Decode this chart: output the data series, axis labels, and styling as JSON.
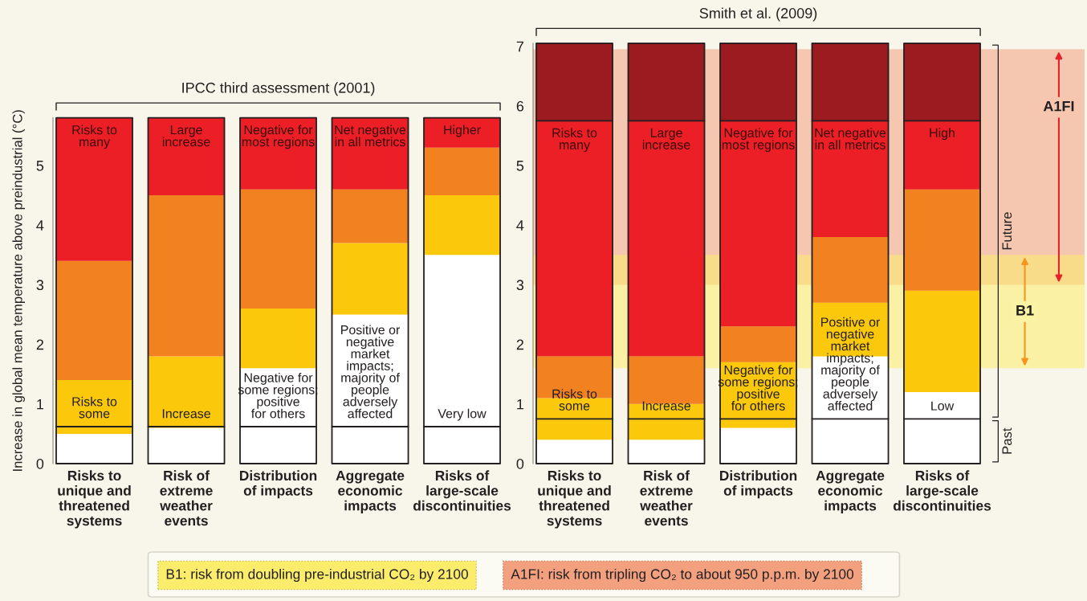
{
  "chart_data": [
    {
      "type": "bar",
      "stacked": true,
      "title": "IPCC third assessment (2001)",
      "ylabel": "Increase in global mean temperature above preindustrial (°C)",
      "categories": [
        "Risks to\nunique and\nthreatened\nsystems",
        "Risk of\nextreme\nweather\nevents",
        "Distribution\nof impacts",
        "Aggregate\neconomic\nimpacts",
        "Risks of\nlarge-scale\ndiscontinuities"
      ],
      "series": [
        {
          "color": "#ffffff",
          "values": [
            0.5,
            0.6,
            1.6,
            2.5,
            3.5
          ]
        },
        {
          "color": "#fcc80c",
          "values": [
            0.9,
            1.2,
            1.0,
            1.2,
            1.0
          ]
        },
        {
          "color": "#f2821f",
          "values": [
            2.0,
            2.7,
            2.0,
            0.9,
            0.8
          ]
        },
        {
          "color": "#ec1f26",
          "values": [
            2.4,
            1.3,
            1.2,
            1.2,
            0.5
          ]
        }
      ],
      "ylim": [
        0,
        5.8
      ],
      "yticks": [
        0,
        1,
        2,
        3,
        4,
        5
      ],
      "ref_lines": [
        {
          "axis": "y",
          "value": 0.62
        }
      ],
      "annotations": [
        "Risks to\nmany",
        "Risks to\nsome",
        "Large\nincrease",
        "Increase",
        "Negative for\nmost regions",
        "Negative for\nsome regions;\npositive\nfor others",
        "Net negative\nin all metrics",
        "Positive or\nnegative\nmarket\nimpacts;\nmajority of\npeople\nadversely\naffected",
        "Higher",
        "Very low"
      ]
    },
    {
      "type": "bar",
      "stacked": true,
      "title": "Smith et al. (2009)",
      "categories": [
        "Risks to\nunique and\nthreatened\nsystems",
        "Risk of\nextreme\nweather\nevents",
        "Distribution\nof impacts",
        "Aggregate\neconomic\nimpacts",
        "Risks of\nlarge-scale\ndiscontinuities"
      ],
      "series": [
        {
          "color": "#ffffff",
          "values": [
            0.4,
            0.4,
            0.6,
            1.8,
            1.2
          ]
        },
        {
          "color": "#fcc80c",
          "values": [
            0.7,
            0.6,
            1.1,
            0.9,
            1.7
          ]
        },
        {
          "color": "#f2821f",
          "values": [
            0.7,
            0.8,
            0.6,
            1.1,
            1.7
          ]
        },
        {
          "color": "#ec1f26",
          "values": [
            3.95,
            3.95,
            3.45,
            1.95,
            1.15
          ]
        },
        {
          "color": "#9b1b20",
          "values": [
            1.3,
            1.3,
            1.3,
            1.3,
            1.3
          ]
        }
      ],
      "ylim": [
        0,
        7.05
      ],
      "yticks": [
        0,
        1,
        2,
        3,
        4,
        5,
        6,
        7
      ],
      "ref_lines": [
        {
          "axis": "y",
          "value": 0.75
        }
      ],
      "bands": [
        {
          "axis": "y",
          "from": 3.0,
          "to": 6.95,
          "label": "A1FI",
          "color": "#f3a07f"
        },
        {
          "axis": "y",
          "from": 1.6,
          "to": 3.5,
          "label": "B1",
          "color": "#fbec6c"
        }
      ],
      "annotations": [
        "Risks to\nmany",
        "Risks to\nsome",
        "Large\nincrease",
        "Increase",
        "Negative for\nmost regions",
        "Negative for\nsome regions;\npositive\nfor others",
        "Net negative\nin all metrics",
        "Positive or\nnegative\nmarket\nimpacts;\nmajority of\npeople\nadversely\naffected",
        "High",
        "Low",
        "Future",
        "Past",
        "B1: risk from doubling pre-industrial CO₂ by 2100",
        "A1FI: risk from tripling CO₂ to about 950 p.p.m. by 2100"
      ]
    }
  ]
}
